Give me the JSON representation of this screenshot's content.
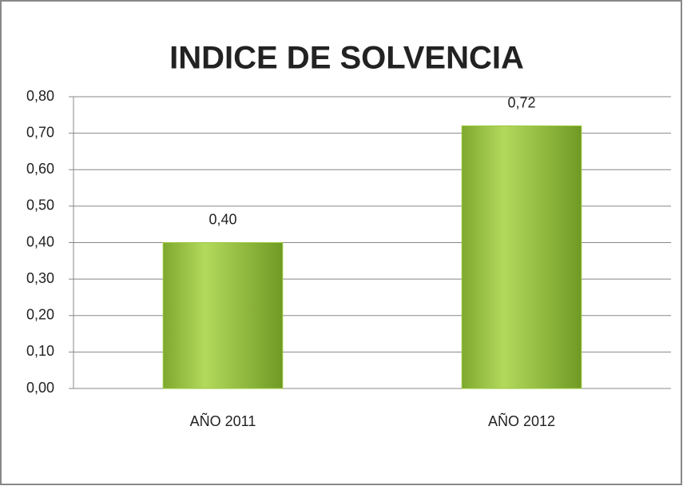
{
  "chart_data": {
    "type": "bar",
    "title": "INDICE DE SOLVENCIA",
    "categories": [
      "AÑO 2011",
      "AÑO 2012"
    ],
    "values": [
      0.4,
      0.72
    ],
    "value_labels": [
      "0,40",
      "0,72"
    ],
    "color": "#9bc73f",
    "ylim": [
      0,
      0.8
    ],
    "yticks": [
      {
        "value": 0,
        "label": "0,00"
      },
      {
        "value": 0.1,
        "label": "0,10"
      },
      {
        "value": 0.2,
        "label": "0,20"
      },
      {
        "value": 0.3,
        "label": "0,30"
      },
      {
        "value": 0.4,
        "label": "0,40"
      },
      {
        "value": 0.5,
        "label": "0,50"
      },
      {
        "value": 0.6,
        "label": "0,60"
      },
      {
        "value": 0.7,
        "label": "0,70"
      },
      {
        "value": 0.8,
        "label": "0,80"
      }
    ],
    "grid": true
  }
}
